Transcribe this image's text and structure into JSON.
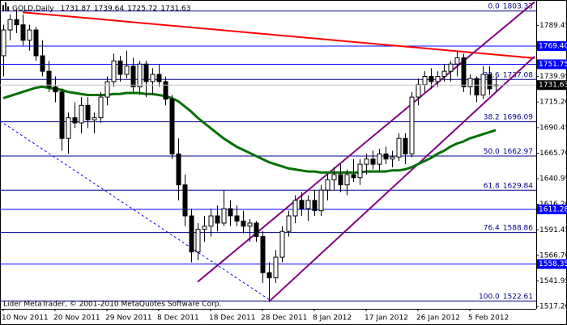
{
  "chart_data": {
    "type": "candlestick",
    "symbol": "GOLD,Daily",
    "footer": "Lider MetaTrader, © 2001-2010 MetaQuotes Software Corp.",
    "ylim": [
      1515,
      1814
    ],
    "grid": false,
    "up_color": "#ffffff",
    "down_color": "#000000",
    "yticks": [
      {
        "value": 1517.2,
        "label": "1517.20"
      },
      1541.95,
      {
        "value": 1566.7,
        "label": "1566.70"
      },
      1591.45,
      {
        "value": 1616.2,
        "label": "1616.20"
      },
      1640.95,
      {
        "value": 1665.7,
        "label": "1665.70"
      },
      1690.45,
      {
        "value": 1715.2,
        "label": "1715.20"
      },
      1739.95,
      1789.45
    ],
    "categories": [
      "10 Nov 2011",
      null,
      null,
      null,
      null,
      null,
      null,
      null,
      "20 Nov 2011",
      null,
      null,
      null,
      null,
      null,
      null,
      null,
      "29 Nov 2011",
      null,
      null,
      null,
      null,
      null,
      null,
      null,
      "8 Dec 2011",
      null,
      null,
      null,
      null,
      null,
      null,
      null,
      "18 Dec 2011",
      null,
      null,
      null,
      null,
      null,
      null,
      null,
      "28 Dec 2011",
      null,
      null,
      null,
      null,
      null,
      null,
      null,
      "8 Jan 2012",
      null,
      null,
      null,
      null,
      null,
      null,
      null,
      "17 Jan 2012",
      null,
      null,
      null,
      null,
      null,
      null,
      null,
      "26 Jan 2012",
      null,
      null,
      null,
      null,
      null,
      null,
      null,
      "5 Feb 2012",
      null,
      null,
      null,
      null
    ],
    "ohlc": [
      [
        1760,
        1790,
        1740,
        1785
      ],
      [
        1785,
        1800,
        1775,
        1795
      ],
      [
        1795,
        1805,
        1782,
        1790
      ],
      [
        1790,
        1800,
        1770,
        1775
      ],
      [
        1775,
        1790,
        1765,
        1785
      ],
      [
        1785,
        1788,
        1755,
        1760
      ],
      [
        1760,
        1775,
        1740,
        1745
      ],
      [
        1745,
        1755,
        1725,
        1730
      ],
      [
        1730,
        1740,
        1715,
        1725
      ],
      [
        1725,
        1728,
        1668,
        1680
      ],
      [
        1680,
        1705,
        1665,
        1700
      ],
      [
        1700,
        1715,
        1690,
        1695
      ],
      [
        1695,
        1720,
        1685,
        1712
      ],
      [
        1712,
        1720,
        1690,
        1698
      ],
      [
        1698,
        1705,
        1685,
        1700
      ],
      [
        1700,
        1725,
        1695,
        1720
      ],
      [
        1720,
        1740,
        1712,
        1735
      ],
      [
        1735,
        1762,
        1730,
        1755
      ],
      [
        1755,
        1760,
        1735,
        1742
      ],
      [
        1742,
        1765,
        1738,
        1750
      ],
      [
        1750,
        1758,
        1725,
        1730
      ],
      [
        1730,
        1755,
        1722,
        1752
      ],
      [
        1752,
        1755,
        1720,
        1735
      ],
      [
        1735,
        1748,
        1722,
        1742
      ],
      [
        1742,
        1752,
        1730,
        1735
      ],
      [
        1735,
        1740,
        1712,
        1718
      ],
      [
        1718,
        1722,
        1660,
        1665
      ],
      [
        1665,
        1680,
        1620,
        1635
      ],
      [
        1635,
        1645,
        1595,
        1605
      ],
      [
        1605,
        1612,
        1560,
        1570
      ],
      [
        1570,
        1598,
        1562,
        1592
      ],
      [
        1592,
        1605,
        1580,
        1595
      ],
      [
        1595,
        1612,
        1585,
        1605
      ],
      [
        1605,
        1615,
        1590,
        1598
      ],
      [
        1598,
        1630,
        1595,
        1612
      ],
      [
        1612,
        1620,
        1595,
        1605
      ],
      [
        1605,
        1615,
        1595,
        1600
      ],
      [
        1600,
        1610,
        1588,
        1595
      ],
      [
        1595,
        1602,
        1580,
        1598
      ],
      [
        1598,
        1600,
        1580,
        1585
      ],
      [
        1585,
        1590,
        1540,
        1550
      ],
      [
        1550,
        1560,
        1522,
        1545
      ],
      [
        1545,
        1572,
        1540,
        1565
      ],
      [
        1565,
        1595,
        1560,
        1590
      ],
      [
        1590,
        1610,
        1585,
        1605
      ],
      [
        1605,
        1625,
        1598,
        1620
      ],
      [
        1620,
        1628,
        1605,
        1612
      ],
      [
        1612,
        1625,
        1600,
        1620
      ],
      [
        1620,
        1630,
        1605,
        1610
      ],
      [
        1610,
        1635,
        1605,
        1630
      ],
      [
        1630,
        1645,
        1620,
        1640
      ],
      [
        1640,
        1652,
        1630,
        1645
      ],
      [
        1645,
        1655,
        1628,
        1635
      ],
      [
        1635,
        1650,
        1625,
        1645
      ],
      [
        1645,
        1660,
        1638,
        1642
      ],
      [
        1642,
        1660,
        1635,
        1655
      ],
      [
        1655,
        1665,
        1645,
        1660
      ],
      [
        1660,
        1668,
        1650,
        1655
      ],
      [
        1655,
        1670,
        1648,
        1665
      ],
      [
        1665,
        1672,
        1655,
        1660
      ],
      [
        1660,
        1668,
        1652,
        1662
      ],
      [
        1662,
        1685,
        1658,
        1680
      ],
      [
        1680,
        1685,
        1655,
        1665
      ],
      [
        1665,
        1725,
        1662,
        1720
      ],
      [
        1720,
        1738,
        1712,
        1732
      ],
      [
        1732,
        1745,
        1725,
        1740
      ],
      [
        1740,
        1748,
        1728,
        1735
      ],
      [
        1735,
        1745,
        1730,
        1740
      ],
      [
        1740,
        1752,
        1735,
        1745
      ],
      [
        1745,
        1755,
        1735,
        1752
      ],
      [
        1752,
        1765,
        1740,
        1758
      ],
      [
        1758,
        1762,
        1725,
        1730
      ],
      [
        1730,
        1742,
        1722,
        1738
      ],
      [
        1738,
        1740,
        1715,
        1722
      ],
      [
        1722,
        1750,
        1718,
        1742
      ],
      [
        1742,
        1750,
        1722,
        1728
      ],
      [
        1731.87,
        1739.64,
        1725.72,
        1731.63
      ]
    ],
    "ma": {
      "color": "#007000",
      "values": [
        1719,
        1721,
        1723,
        1725,
        1727,
        1729,
        1730,
        1729,
        1728,
        1727,
        1725,
        1724,
        1723,
        1722,
        1722,
        1722,
        1722,
        1723,
        1723,
        1724,
        1724,
        1724,
        1723,
        1723,
        1722,
        1721,
        1719,
        1716,
        1711,
        1706,
        1700,
        1695,
        1690,
        1685,
        1680,
        1676,
        1672,
        1669,
        1666,
        1663,
        1660,
        1657,
        1655,
        1653,
        1651,
        1650,
        1649,
        1648,
        1648,
        1647,
        1647,
        1647,
        1647,
        1647,
        1647,
        1647,
        1648,
        1648,
        1648,
        1648,
        1649,
        1649,
        1650,
        1652,
        1655,
        1658,
        1661,
        1665,
        1668,
        1672,
        1675,
        1677,
        1680,
        1682,
        1684,
        1686,
        1688
      ]
    },
    "levels": {
      "color": "#0000ff",
      "values": [
        {
          "value": 1769.4,
          "label": "1769.40"
        },
        1751.75,
        1611.28,
        1558.35
      ]
    },
    "fibo": {
      "color": "#00008b",
      "levels": [
        "0.0",
        "23.6",
        "38.2",
        "50.0",
        "61.8",
        "76.4",
        "100.0"
      ],
      "prices": [
        1803.33,
        1737.08,
        1696.09,
        1662.97,
        1629.84,
        1588.86,
        1522.61
      ]
    },
    "trendlines": [
      {
        "color": "#ff0000",
        "x": [
          3,
          82
        ],
        "y": [
          1802.1,
          1757.7
        ]
      },
      {
        "color": "#800080",
        "x": [
          30,
          82
        ],
        "y": [
          1541.1,
          1812.1
        ]
      },
      {
        "color": "#800080",
        "x": [
          41,
          82
        ],
        "y": [
          1521.9,
          1759.4
        ]
      },
      {
        "color": "#0000ff",
        "dashed": true,
        "x": [
          -0.5,
          41
        ],
        "y": [
          1696.9,
          1524.1
        ]
      }
    ]
  }
}
